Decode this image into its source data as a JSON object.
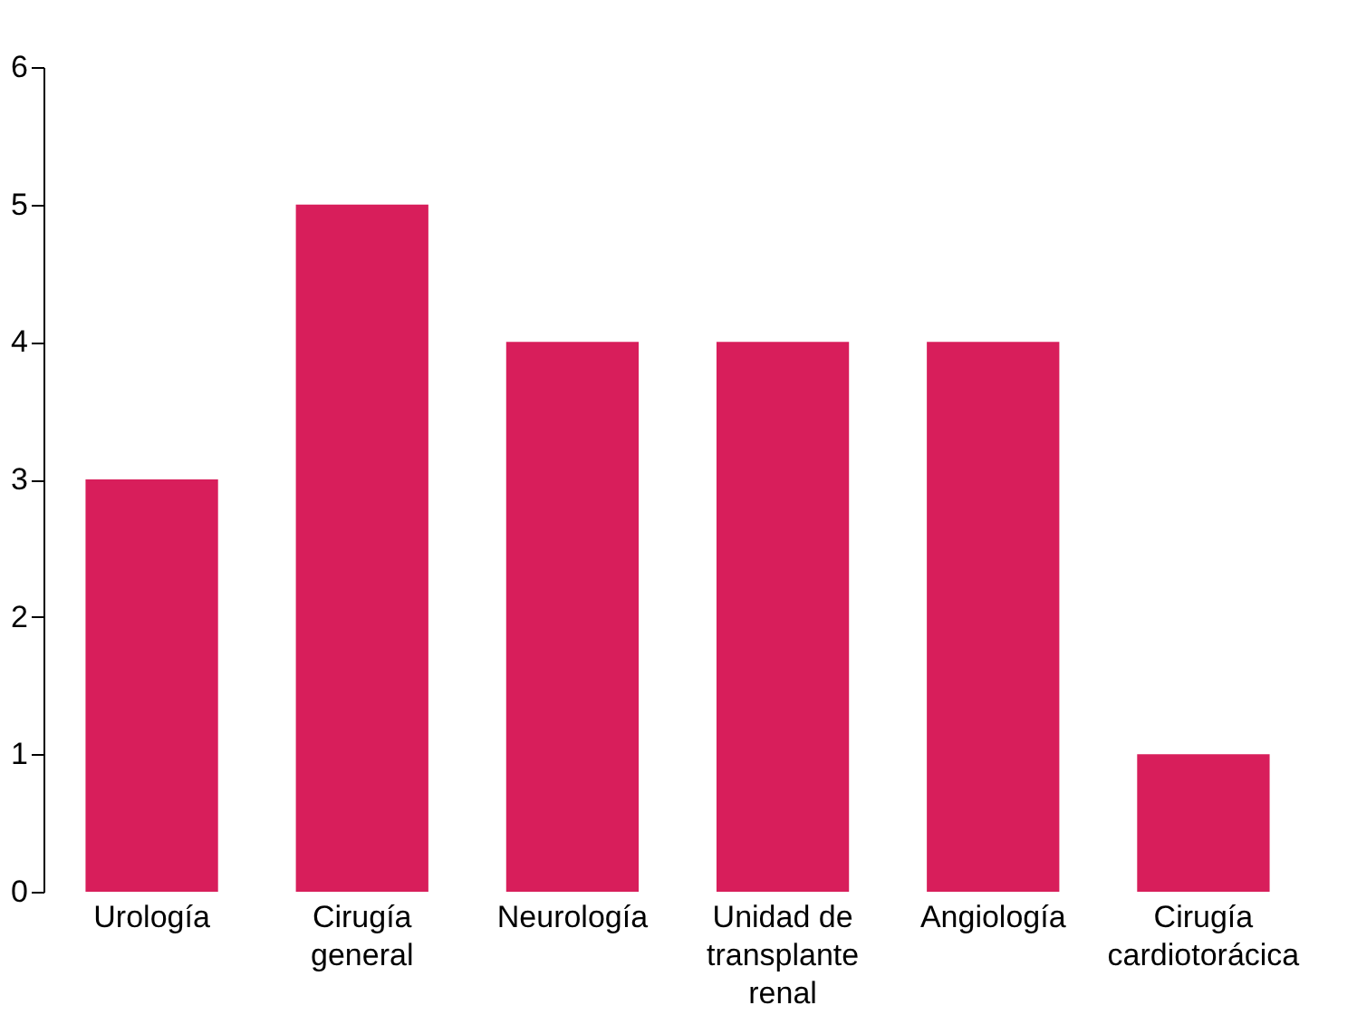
{
  "chart_data": {
    "type": "bar",
    "categories": [
      "Urología",
      "Cirugía general",
      "Neurología",
      "Unidad de transplante renal",
      "Angiología",
      "Cirugía cardiotorácica"
    ],
    "values": [
      3,
      5,
      4,
      4,
      4,
      1
    ],
    "color": "#d81e5b",
    "ylim": [
      0,
      6
    ],
    "yticks": [
      0,
      1,
      2,
      3,
      4,
      5,
      6
    ],
    "grid": false
  }
}
